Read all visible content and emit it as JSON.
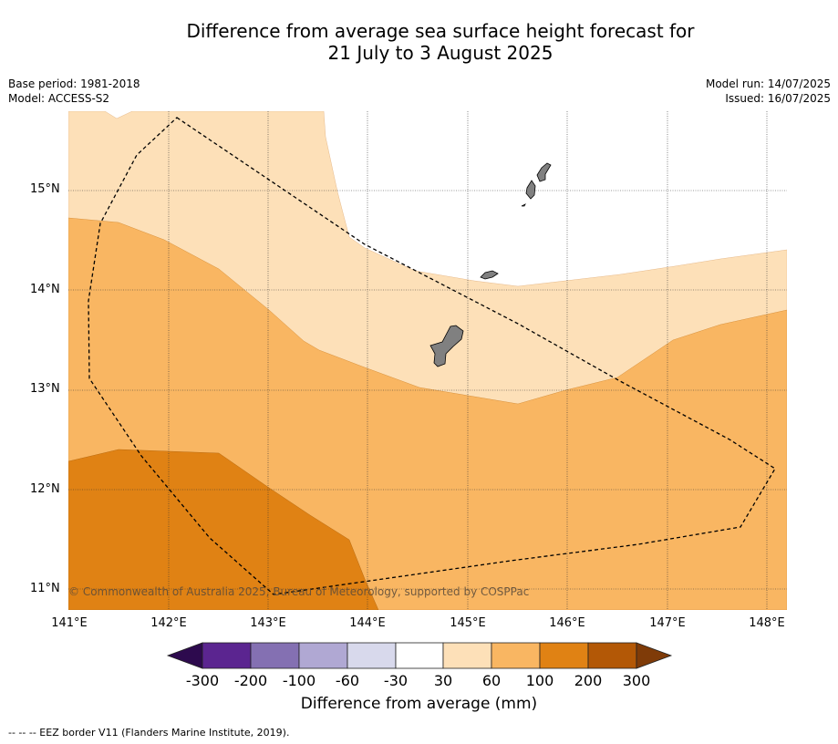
{
  "title_line1": "Difference from average sea surface height forecast for",
  "title_line2": "21 July to 3 August 2025",
  "meta_left": [
    "Base period: 1981-2018",
    "Model: ACCESS-S2"
  ],
  "meta_right": [
    "Model run: 14/07/2025",
    "Issued: 16/07/2025"
  ],
  "lat_ticks": [
    "15°N",
    "14°N",
    "13°N",
    "12°N",
    "11°N"
  ],
  "lon_ticks": [
    "141°E",
    "142°E",
    "143°E",
    "144°E",
    "145°E",
    "146°E",
    "147°E",
    "148°E"
  ],
  "copyright": "© Commonwealth of Australia 2025, Bureau of Meteorology, supported by COSPPac",
  "colorbar": {
    "labels": [
      "-300",
      "-200",
      "-100",
      "-60",
      "-30",
      "30",
      "60",
      "100",
      "200",
      "300"
    ],
    "colors": [
      "#2d0a4e",
      "#5b2590",
      "#8470b2",
      "#b0a8d3",
      "#d8d9ec",
      "#ffffff",
      "#fde0b8",
      "#f9b662",
      "#e08214",
      "#b35806",
      "#7f3b08"
    ],
    "title": "Difference from average (mm)"
  },
  "footer": "--  --  -- EEZ border V11 (Flanders Marine Institute, 2019).",
  "map_colors": {
    "band_30_60": "#fde0b8",
    "band_60_100": "#f9b662",
    "band_100_200": "#e08214",
    "land": "#808080"
  }
}
